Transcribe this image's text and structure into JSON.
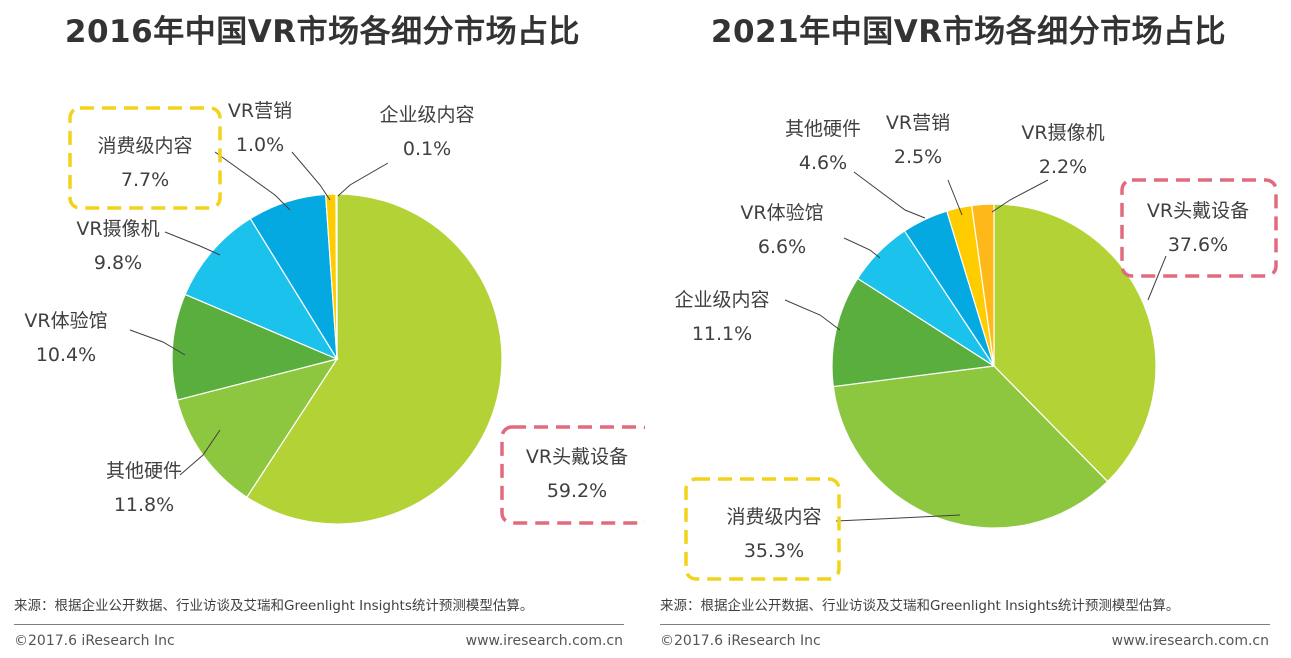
{
  "colors": {
    "vr_headset": "#B3D235",
    "other_hardware": "#8DC63F",
    "vr_arcade": "#5AAE3D",
    "vr_camera": "#1BC2EC",
    "consumer_content": "#05A9E2",
    "vr_marketing": "#FFCC00",
    "enterprise_content": "#FFB819",
    "highlight_red": "#E06B7E",
    "highlight_yellow": "#F2D21B",
    "leader_line": "#404040"
  },
  "chart_data": [
    {
      "type": "pie",
      "title": "2016年中国VR市场各细分市场占比",
      "start_angle_deg": 0,
      "direction": "clockwise",
      "slices": [
        {
          "label": "VR头戴设备",
          "value": 59.2,
          "value_text": "59.2%",
          "color_key": "vr_headset",
          "highlight": "red"
        },
        {
          "label": "其他硬件",
          "value": 11.8,
          "value_text": "11.8%",
          "color_key": "other_hardware"
        },
        {
          "label": "VR体验馆",
          "value": 10.4,
          "value_text": "10.4%",
          "color_key": "vr_arcade"
        },
        {
          "label": "VR摄像机",
          "value": 9.8,
          "value_text": "9.8%",
          "color_key": "vr_camera"
        },
        {
          "label": "消费级内容",
          "value": 7.7,
          "value_text": "7.7%",
          "color_key": "consumer_content",
          "highlight": "yellow"
        },
        {
          "label": "VR营销",
          "value": 1.0,
          "value_text": "1.0%",
          "color_key": "vr_marketing"
        },
        {
          "label": "企业级内容",
          "value": 0.1,
          "value_text": "0.1%",
          "color_key": "enterprise_content"
        }
      ]
    },
    {
      "type": "pie",
      "title": "2021年中国VR市场各细分市场占比",
      "start_angle_deg": 0,
      "direction": "clockwise",
      "slices": [
        {
          "label": "VR头戴设备",
          "value": 37.6,
          "value_text": "37.6%",
          "color_key": "vr_headset",
          "highlight": "red"
        },
        {
          "label": "消费级内容",
          "value": 35.3,
          "value_text": "35.3%",
          "color_key": "other_hardware",
          "highlight": "yellow"
        },
        {
          "label": "企业级内容",
          "value": 11.1,
          "value_text": "11.1%",
          "color_key": "vr_arcade"
        },
        {
          "label": "VR体验馆",
          "value": 6.6,
          "value_text": "6.6%",
          "color_key": "vr_camera"
        },
        {
          "label": "其他硬件",
          "value": 4.6,
          "value_text": "4.6%",
          "color_key": "consumer_content"
        },
        {
          "label": "VR营销",
          "value": 2.5,
          "value_text": "2.5%",
          "color_key": "vr_marketing"
        },
        {
          "label": "VR摄像机",
          "value": 2.2,
          "value_text": "2.2%",
          "color_key": "enterprise_content"
        }
      ]
    }
  ],
  "footer": {
    "source": "来源：根据企业公开数据、行业访谈及艾瑞和Greenlight Insights统计预测模型估算。",
    "copyright": "©2017.6 iResearch Inc",
    "website": "www.iresearch.com.cn"
  }
}
